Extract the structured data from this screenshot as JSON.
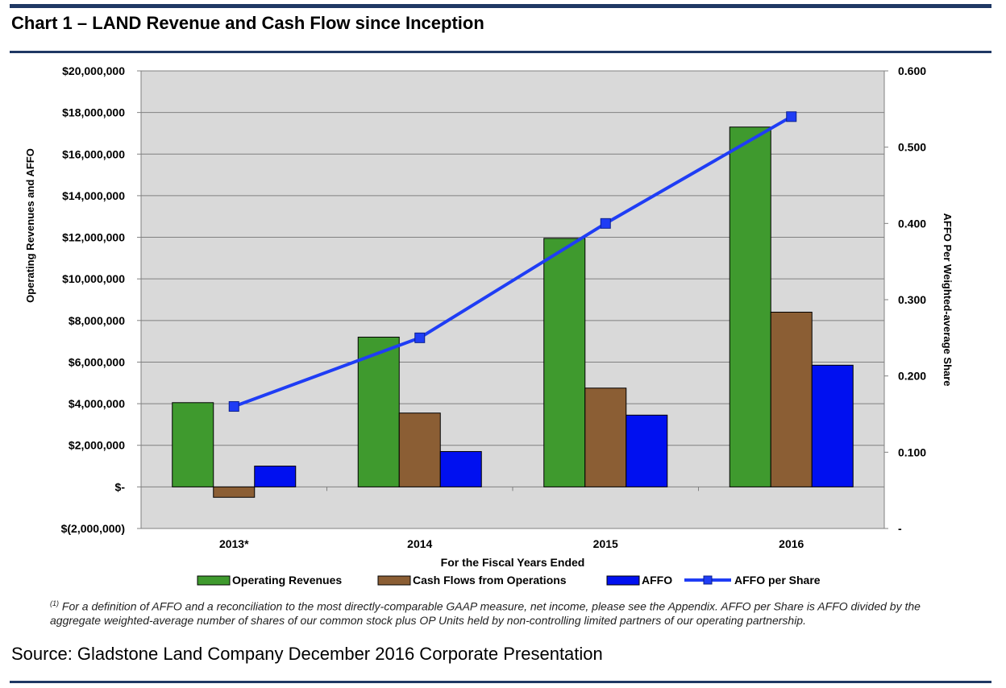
{
  "header": {
    "title": "Chart 1 – LAND Revenue and Cash Flow since Inception"
  },
  "chart_data": {
    "type": "bar",
    "categories": [
      "2013*",
      "2014",
      "2015",
      "2016"
    ],
    "series": [
      {
        "name": "Operating Revenues",
        "color": "#3f9a2e",
        "values": [
          4050000,
          7200000,
          11950000,
          17300000
        ]
      },
      {
        "name": "Cash Flows from Operations",
        "color": "#8b5e34",
        "values": [
          -500000,
          3550000,
          4750000,
          8400000
        ]
      },
      {
        "name": "AFFO",
        "color": "#0010f0",
        "values": [
          1000000,
          1700000,
          3450000,
          5850000
        ]
      }
    ],
    "line_series": [
      {
        "name": "AFFO per Share",
        "color": "#1f3df5",
        "values": [
          0.16,
          0.25,
          0.4,
          0.54
        ],
        "axis": "right"
      }
    ],
    "xlabel": "For the Fiscal Years Ended",
    "ylabel": "Operating Revenues and AFFO",
    "y2label": "AFFO Per Weighted-average Share",
    "ylim": [
      -2000000,
      20000000
    ],
    "y2lim": [
      0.0,
      0.6
    ],
    "yticks": [
      "$20,000,000",
      "$18,000,000",
      "$16,000,000",
      "$14,000,000",
      "$12,000,000",
      "$10,000,000",
      "$8,000,000",
      "$6,000,000",
      "$4,000,000",
      "$2,000,000",
      "$-",
      "$(2,000,000)"
    ],
    "y2ticks": [
      "0.600",
      "0.500",
      "0.400",
      "0.300",
      "0.200",
      "0.100",
      "-"
    ],
    "legend_position": "bottom",
    "grid": true,
    "plot_background": "#d9d9d9"
  },
  "footnote": {
    "marker": "(1)",
    "text": " For a definition of AFFO and a reconciliation to the most directly-comparable GAAP measure, net income, please see the Appendix.  AFFO per Share is AFFO divided by the aggregate weighted-average number of shares of our common stock plus OP Units held by non-controlling limited partners of our operating partnership."
  },
  "source": "Source: Gladstone Land Company December 2016 Corporate Presentation"
}
